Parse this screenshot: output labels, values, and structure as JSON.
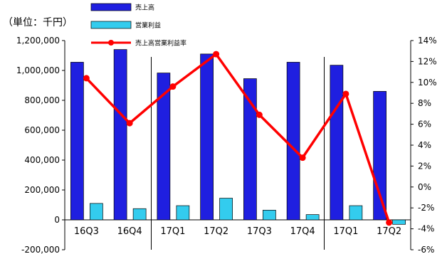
{
  "chart_data": {
    "type": "bar",
    "unit_label": "（単位：千円）",
    "categories": [
      "16Q3",
      "16Q4",
      "17Q1",
      "17Q2",
      "17Q3",
      "17Q4",
      "17Q1",
      "17Q2"
    ],
    "series": [
      {
        "name": "売上高",
        "kind": "bar",
        "axis": "left",
        "color": "#1f1fe0",
        "values": [
          1055000,
          1140000,
          983000,
          1110000,
          945000,
          1055000,
          1035000,
          860000
        ]
      },
      {
        "name": "営業利益",
        "kind": "bar",
        "axis": "left",
        "color": "#33ccee",
        "values": [
          110000,
          75000,
          95000,
          145000,
          65000,
          35000,
          95000,
          -30000
        ]
      },
      {
        "name": "売上高営業利益率",
        "kind": "line",
        "axis": "right",
        "color": "#ff0000",
        "values": [
          10.4,
          6.1,
          9.6,
          12.7,
          6.9,
          2.8,
          8.9,
          -3.4
        ]
      }
    ],
    "left_axis": {
      "min": -200000,
      "max": 1200000,
      "step": 200000,
      "tick_labels": [
        "-200,000",
        "0",
        "200,000",
        "400,000",
        "600,000",
        "800,000",
        "1,000,000",
        "1,200,000"
      ]
    },
    "right_axis": {
      "min": -6,
      "max": 14,
      "step": 2,
      "tick_labels": [
        "-6%",
        "-4%",
        "-2%",
        "0%",
        "2%",
        "4%",
        "6%",
        "8%",
        "10%",
        "12%",
        "14%"
      ]
    },
    "separators_after_index": [
      1,
      5
    ],
    "legend_position": "top"
  }
}
